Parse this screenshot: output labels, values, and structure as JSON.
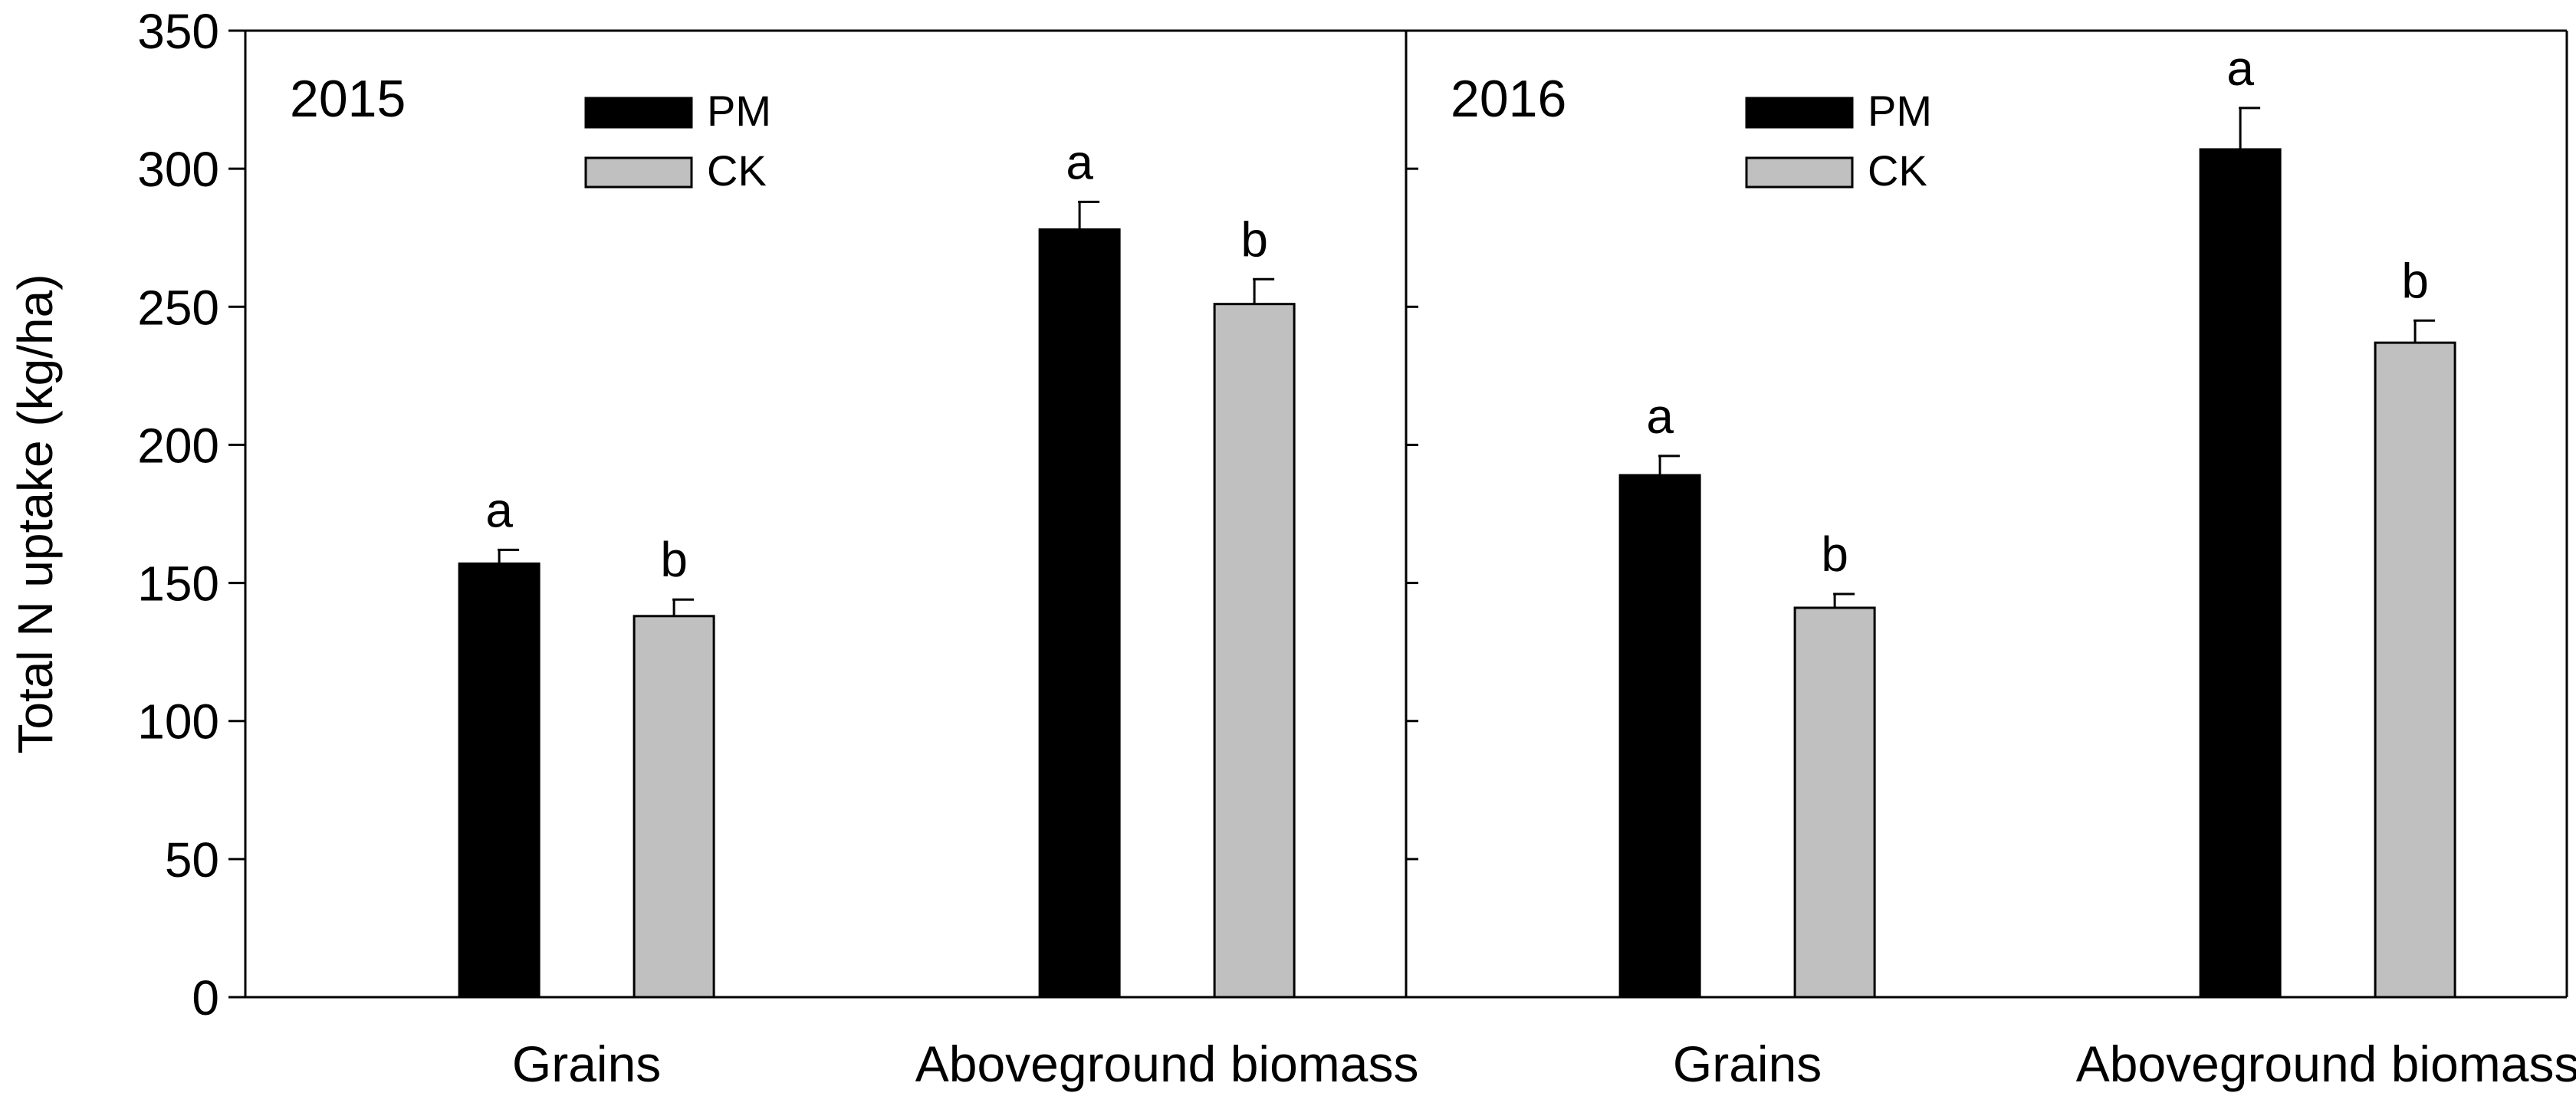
{
  "chart_data": {
    "type": "bar",
    "ylabel": "Total N uptake (kg/ha)",
    "ylim": [
      0,
      350
    ],
    "yticks": [
      "0",
      "50",
      "100",
      "150",
      "200",
      "250",
      "300",
      "350"
    ],
    "grid": false,
    "legend": {
      "placement": "top-center of each panel",
      "entries": [
        {
          "name": "PM",
          "color": "#000000"
        },
        {
          "name": "CK",
          "color": "#c0c0c0"
        }
      ]
    },
    "panels": [
      {
        "title": "2015",
        "categories": [
          "Grains",
          "Aboveground biomass"
        ],
        "series": [
          {
            "name": "PM",
            "values": [
              157,
              278
            ],
            "errors": [
              5,
              10
            ],
            "letters": [
              "a",
              "a"
            ]
          },
          {
            "name": "CK",
            "values": [
              138,
              251
            ],
            "errors": [
              6,
              9
            ],
            "letters": [
              "b",
              "b"
            ]
          }
        ]
      },
      {
        "title": "2016",
        "categories": [
          "Grains",
          "Aboveground biomass"
        ],
        "series": [
          {
            "name": "PM",
            "values": [
              189,
              307
            ],
            "errors": [
              7,
              15
            ],
            "letters": [
              "a",
              "a"
            ]
          },
          {
            "name": "CK",
            "values": [
              141,
              237
            ],
            "errors": [
              5,
              8
            ],
            "letters": [
              "b",
              "b"
            ]
          }
        ]
      }
    ]
  }
}
